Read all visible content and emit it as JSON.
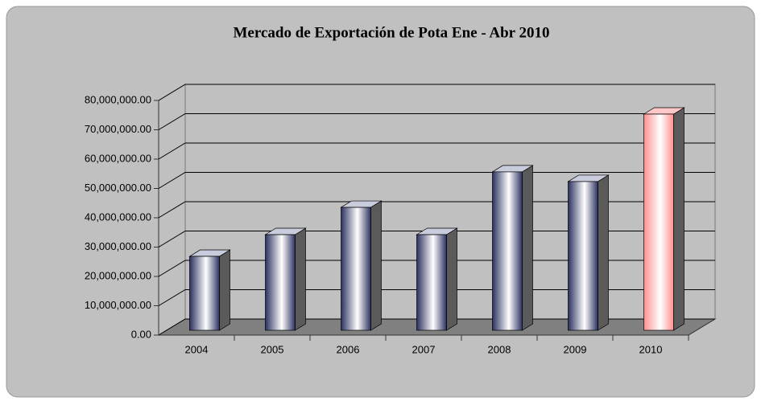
{
  "chart_data": {
    "type": "bar3d",
    "title": "Mercado de Exportación de Pota Ene - Abr 2010",
    "categories": [
      "2004",
      "2005",
      "2006",
      "2007",
      "2008",
      "2009",
      "2010"
    ],
    "values": [
      25200000,
      32600000,
      41900000,
      32600000,
      54000000,
      50700000,
      73700000
    ],
    "colors": [
      "#2b3160",
      "#2b3160",
      "#2b3160",
      "#2b3160",
      "#2b3160",
      "#2b3160",
      "#ff8f8f"
    ],
    "ylim": [
      0,
      80000000
    ],
    "yticks": [
      {
        "value": 0,
        "label": "0.00"
      },
      {
        "value": 10000000,
        "label": "10,000,000.00"
      },
      {
        "value": 20000000,
        "label": "20,000,000.00"
      },
      {
        "value": 30000000,
        "label": "30,000,000.00"
      },
      {
        "value": 40000000,
        "label": "40,000,000.00"
      },
      {
        "value": 50000000,
        "label": "50,000,000.00"
      },
      {
        "value": 60000000,
        "label": "60,000,000.00"
      },
      {
        "value": 70000000,
        "label": "70,000,000.00"
      },
      {
        "value": 80000000,
        "label": "80,000,000.00"
      }
    ],
    "grid": true
  }
}
